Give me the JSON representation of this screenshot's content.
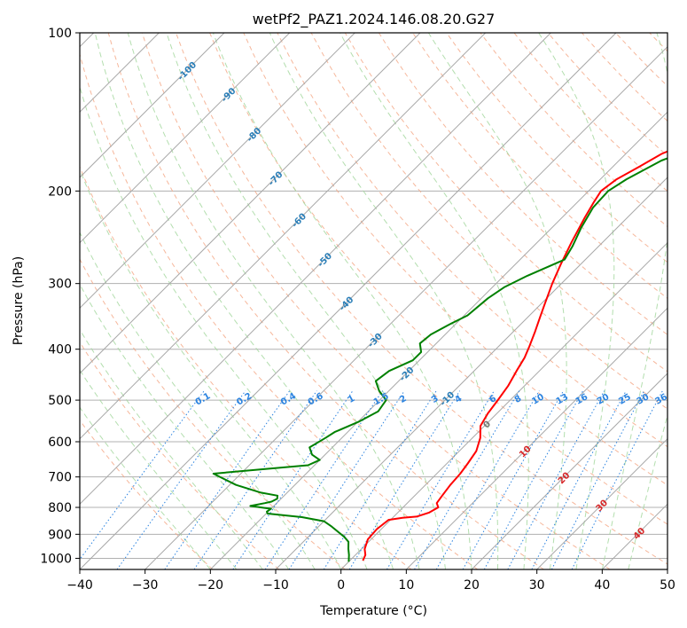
{
  "chart_data": {
    "type": "line",
    "title": "wetPf2_PAZ1.2024.146.08.20.G27",
    "xlabel": "Temperature (°C)",
    "ylabel": "Pressure (hPa)",
    "xlim": [
      -40,
      50
    ],
    "ylim": [
      1050,
      100
    ],
    "y_scale": "log",
    "grid": true,
    "x_ticks": [
      "−40",
      "−30",
      "−20",
      "−10",
      "0",
      "10",
      "20",
      "30",
      "40",
      "50"
    ],
    "y_ticks": [
      {
        "p": 1000,
        "label": "1000"
      },
      {
        "p": 900,
        "label": "900"
      },
      {
        "p": 800,
        "label": "800"
      },
      {
        "p": 700,
        "label": "700"
      },
      {
        "p": 600,
        "label": "600"
      },
      {
        "p": 500,
        "label": "500"
      },
      {
        "p": 400,
        "label": "400"
      },
      {
        "p": 300,
        "label": "300"
      },
      {
        "p": 200,
        "label": "200"
      },
      {
        "p": 100,
        "label": "100"
      }
    ],
    "isotherm_labels": [
      {
        "t": -100,
        "p": 118,
        "text": "-100"
      },
      {
        "t": -90,
        "p": 131,
        "text": "-90"
      },
      {
        "t": -80,
        "p": 156,
        "text": "-80"
      },
      {
        "t": -70,
        "p": 189,
        "text": "-70"
      },
      {
        "t": -60,
        "p": 227,
        "text": "-60"
      },
      {
        "t": -50,
        "p": 270,
        "text": "-50"
      },
      {
        "t": -40,
        "p": 327,
        "text": "-40"
      },
      {
        "t": -30,
        "p": 384,
        "text": "-30"
      },
      {
        "t": -20,
        "p": 445,
        "text": "-20"
      },
      {
        "t": -10,
        "p": 496,
        "text": "-10"
      },
      {
        "t": 0,
        "p": 555,
        "text": "0"
      },
      {
        "t": 10,
        "p": 625,
        "text": "10"
      },
      {
        "t": 20,
        "p": 702,
        "text": "20"
      },
      {
        "t": 30,
        "p": 792,
        "text": "30"
      },
      {
        "t": 40,
        "p": 895,
        "text": "40"
      }
    ],
    "mixing_ratios": [
      "0.1",
      "0.2",
      "0.4",
      "0.6",
      "1",
      "1.5",
      "2",
      "3",
      "4",
      "6",
      "8",
      "10",
      "13",
      "16",
      "20",
      "25",
      "30",
      "36"
    ],
    "series": [
      {
        "name": "Temperature",
        "color": "#ff0000",
        "points": [
          [
            2.0,
            1010
          ],
          [
            1.5,
            985
          ],
          [
            0.5,
            960
          ],
          [
            -0.5,
            920
          ],
          [
            -0.7,
            880
          ],
          [
            -0.3,
            845
          ],
          [
            1.5,
            837
          ],
          [
            3.5,
            833
          ],
          [
            4.8,
            818
          ],
          [
            5.4,
            800
          ],
          [
            4.5,
            785
          ],
          [
            4.2,
            760
          ],
          [
            3.8,
            725
          ],
          [
            3.6,
            690
          ],
          [
            3.2,
            660
          ],
          [
            2.6,
            625
          ],
          [
            1.2,
            590
          ],
          [
            -0.6,
            560
          ],
          [
            -1.4,
            530
          ],
          [
            -1.9,
            500
          ],
          [
            -2.5,
            470
          ],
          [
            -3.5,
            440
          ],
          [
            -4.3,
            415
          ],
          [
            -5.3,
            395
          ],
          [
            -6.7,
            370
          ],
          [
            -8.1,
            348
          ],
          [
            -9.3,
            330
          ],
          [
            -11.4,
            300
          ],
          [
            -13.1,
            275
          ],
          [
            -14.8,
            250
          ],
          [
            -16.5,
            225
          ],
          [
            -17.5,
            210
          ],
          [
            -18.1,
            200
          ],
          [
            -17.5,
            190
          ],
          [
            -16.0,
            180
          ],
          [
            -14.5,
            170
          ],
          [
            -11.5,
            160
          ],
          [
            -10.5,
            150
          ],
          [
            -8.2,
            140
          ],
          [
            -6.4,
            131
          ],
          [
            -5.5,
            125
          ],
          [
            -4.8,
            118
          ],
          [
            -3.7,
            112
          ],
          [
            -3.0,
            106
          ],
          [
            -2.5,
            100
          ]
        ]
      },
      {
        "name": "Dewpoint",
        "color": "#008000",
        "points": [
          [
            0.0,
            1015
          ],
          [
            -1.0,
            985
          ],
          [
            -2.0,
            960
          ],
          [
            -3.1,
            930
          ],
          [
            -4.5,
            910
          ],
          [
            -5.8,
            895
          ],
          [
            -8.0,
            870
          ],
          [
            -10.0,
            850
          ],
          [
            -14.0,
            835
          ],
          [
            -19.8,
            822
          ],
          [
            -20.2,
            815
          ],
          [
            -20.0,
            805
          ],
          [
            -21.8,
            800
          ],
          [
            -23.6,
            795
          ],
          [
            -21.8,
            785
          ],
          [
            -21.0,
            780
          ],
          [
            -20.6,
            770
          ],
          [
            -21.0,
            760
          ],
          [
            -24.0,
            750
          ],
          [
            -29.0,
            725
          ],
          [
            -34.2,
            690
          ],
          [
            -27.5,
            677
          ],
          [
            -21.0,
            665
          ],
          [
            -20.0,
            650
          ],
          [
            -22.0,
            635
          ],
          [
            -23.5,
            615
          ],
          [
            -22.5,
            590
          ],
          [
            -22.0,
            575
          ],
          [
            -19.9,
            550
          ],
          [
            -18.5,
            525
          ],
          [
            -19.0,
            500
          ],
          [
            -21.5,
            480
          ],
          [
            -23.5,
            460
          ],
          [
            -23.0,
            440
          ],
          [
            -21.0,
            420
          ],
          [
            -21.0,
            405
          ],
          [
            -22.5,
            390
          ],
          [
            -22.2,
            375
          ],
          [
            -21.0,
            360
          ],
          [
            -19.5,
            345
          ],
          [
            -19.0,
            320
          ],
          [
            -18.2,
            305
          ],
          [
            -16.4,
            290
          ],
          [
            -13.2,
            270
          ],
          [
            -14.0,
            255
          ],
          [
            -15.5,
            235
          ],
          [
            -16.8,
            215
          ],
          [
            -17.0,
            200
          ],
          [
            -16.0,
            190
          ],
          [
            -13.5,
            175
          ],
          [
            -10.0,
            165
          ],
          [
            -8.3,
            158
          ],
          [
            -10.0,
            150
          ],
          [
            -9.2,
            141
          ],
          [
            -8.8,
            135
          ],
          [
            -7.5,
            130
          ],
          [
            -6.5,
            125
          ],
          [
            -5.8,
            120
          ],
          [
            -4.2,
            112
          ],
          [
            -2.3,
            105
          ],
          [
            -0.5,
            100
          ]
        ]
      }
    ]
  }
}
